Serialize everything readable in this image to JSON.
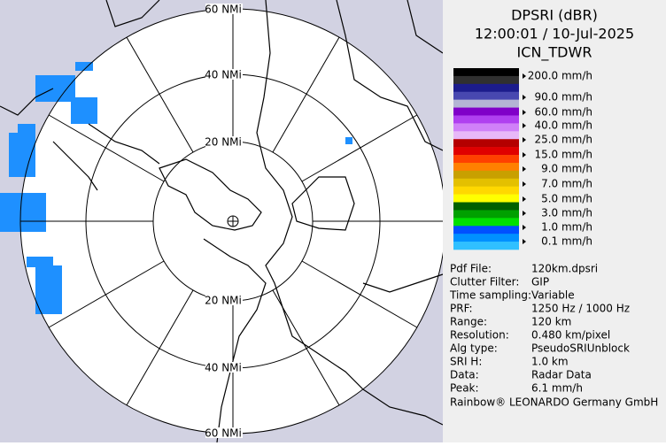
{
  "header": {
    "product": "DPSRI (dBR)",
    "time": "12:00:01 / 10-Jul-2025",
    "site": "ICN_TDWR"
  },
  "range_labels": {
    "top": [
      "60 NMi",
      "40 NMi",
      "20 NMi"
    ],
    "bottom": [
      "20 NMi",
      "40 NMi",
      "60 NMi"
    ]
  },
  "legend": [
    "200.0 mm/h",
    "90.0 mm/h",
    "60.0 mm/h",
    "40.0 mm/h",
    "25.0 mm/h",
    "15.0 mm/h",
    "9.0 mm/h",
    "7.0 mm/h",
    "5.0 mm/h",
    "3.0 mm/h",
    "1.0 mm/h",
    "0.1 mm/h"
  ],
  "info": [
    [
      "Pdf File:",
      "120km.dpsri"
    ],
    [
      "Clutter Filter:",
      "GIP"
    ],
    [
      "Time sampling:",
      "Variable"
    ],
    [
      "PRF:",
      "1250 Hz / 1000 Hz"
    ],
    [
      "Range:",
      "120 km"
    ],
    [
      "Resolution:",
      "0.480 km/pixel"
    ],
    [
      "Alg type:",
      "PseudoSRIUnblock"
    ],
    [
      "SRI H:",
      "1.0 km"
    ],
    [
      "Data:",
      "Radar Data"
    ],
    [
      "Peak:",
      "6.1 mm/h"
    ]
  ],
  "footer": "Rainbow® LEONARDO Germany GmbH"
}
